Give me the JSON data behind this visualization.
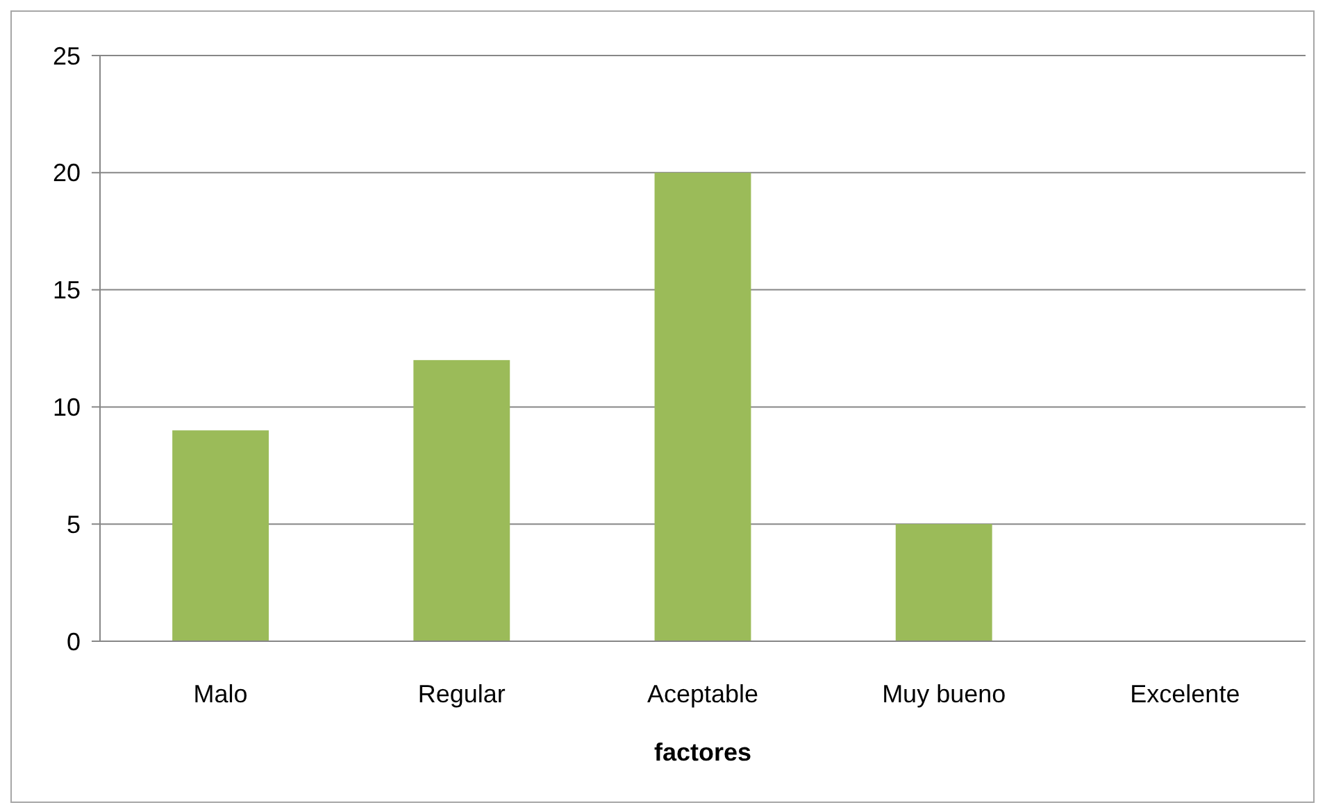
{
  "chart_data": {
    "type": "bar",
    "xlabel": "factores",
    "categories": [
      "Malo",
      "Regular",
      "Aceptable",
      "Muy bueno",
      "Excelente"
    ],
    "values": [
      9,
      12,
      20,
      5,
      0
    ],
    "color": "#9bbb59",
    "ylim": [
      0,
      25
    ],
    "yticks": [
      0,
      5,
      10,
      15,
      20,
      25
    ],
    "grid": "y"
  }
}
